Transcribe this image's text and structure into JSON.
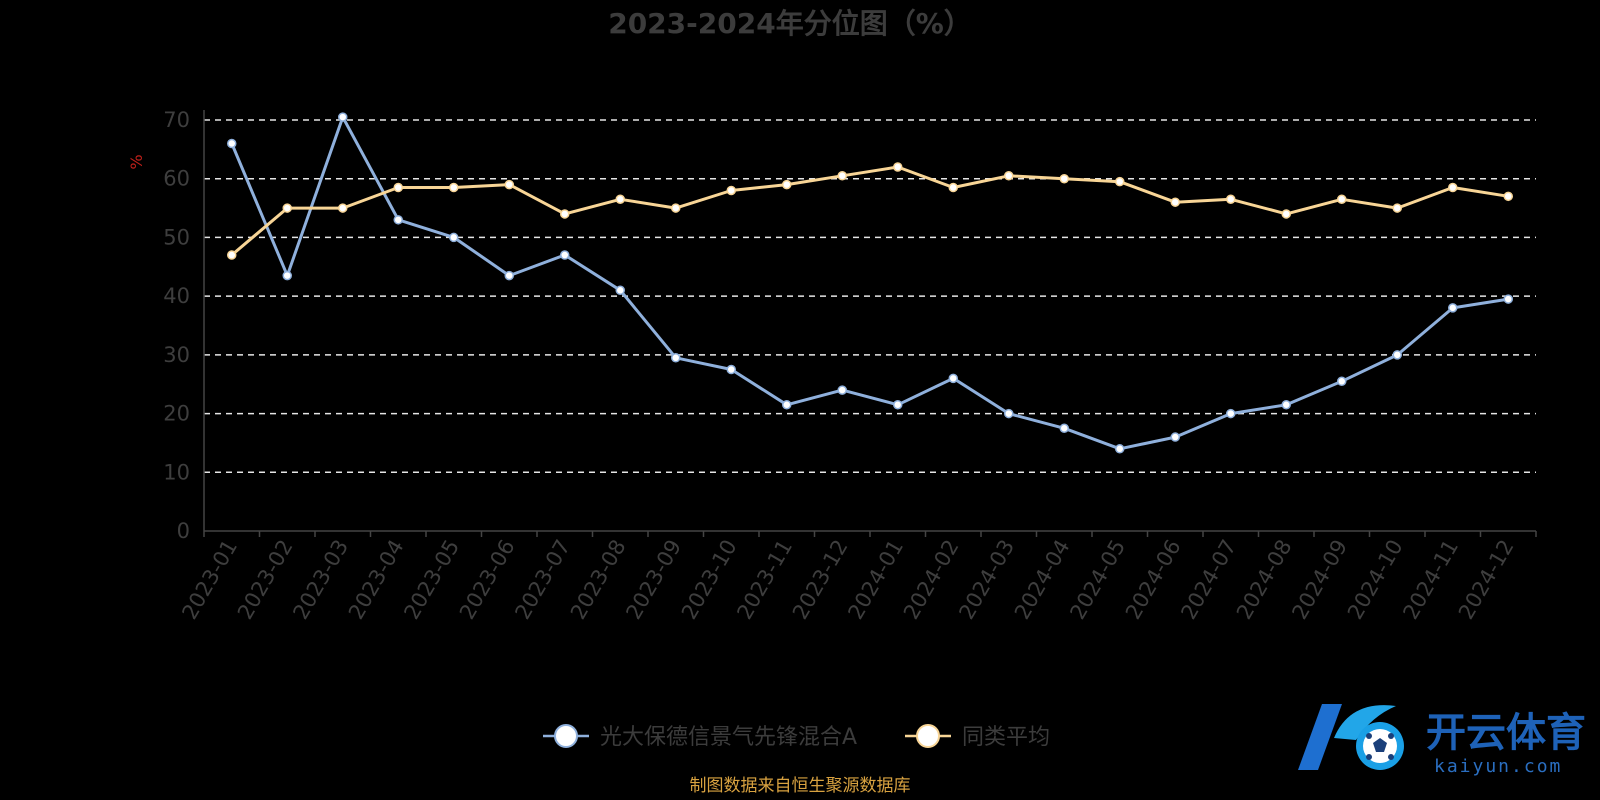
{
  "chart_data": {
    "type": "line",
    "title": "2023-2024年分位图（%）",
    "ylabel": "%",
    "xlabel": "",
    "ylim": [
      0,
      70
    ],
    "yticks": [
      0,
      10,
      20,
      30,
      40,
      50,
      60,
      70
    ],
    "grid": "horizontal dashed",
    "legend_position": "bottom-center",
    "categories": [
      "2023-01",
      "2023-02",
      "2023-03",
      "2023-04",
      "2023-05",
      "2023-06",
      "2023-07",
      "2023-08",
      "2023-09",
      "2023-10",
      "2023-11",
      "2023-12",
      "2024-01",
      "2024-02",
      "2024-03",
      "2024-04",
      "2024-05",
      "2024-06",
      "2024-07",
      "2024-08",
      "2024-09",
      "2024-10",
      "2024-11",
      "2024-12"
    ],
    "series": [
      {
        "name": "光大保德信景气先锋混合A",
        "color": "#8fb0dc",
        "values": [
          66,
          43.5,
          70.5,
          53,
          50,
          43.5,
          47,
          41,
          29.5,
          27.5,
          21.5,
          24,
          21.5,
          26,
          20,
          17.5,
          14,
          16,
          20,
          21.5,
          25.5,
          30,
          38,
          39.5
        ]
      },
      {
        "name": "同类平均",
        "color": "#f8d596",
        "values": [
          47,
          55,
          55,
          58.5,
          58.5,
          59,
          54,
          56.5,
          55,
          58,
          59,
          60.5,
          62,
          58.5,
          60.5,
          60,
          59.5,
          56,
          56.5,
          54,
          56.5,
          55,
          58.5,
          57
        ]
      }
    ]
  },
  "source_note": "制图数据来自恒生聚源数据库",
  "watermark": {
    "brand_cn": "开云体育",
    "brand_en": "kaiyun.com"
  }
}
